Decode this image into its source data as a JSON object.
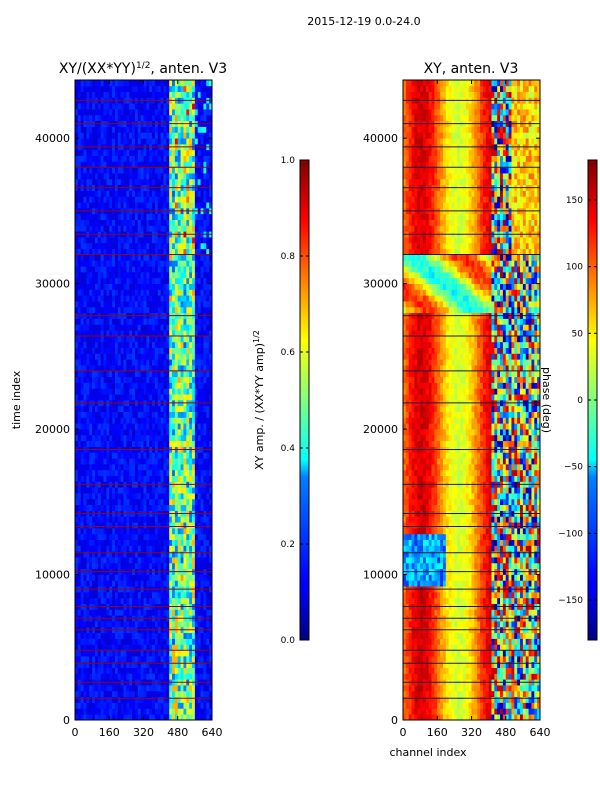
{
  "figure": {
    "suptitle": "2015-12-19 0.0-24.0"
  },
  "chart_data": [
    {
      "type": "heatmap",
      "title": "XY/(XX*YY)^1/2, anten. V3",
      "title_main": "XY/(XX*YY)",
      "title_sup": "1/2",
      "title_tail": ", anten. V3",
      "xlabel": "",
      "ylabel": "time index",
      "xlim": [
        0,
        640
      ],
      "ylim": [
        0,
        44000
      ],
      "xticks": [
        0,
        160,
        320,
        480,
        640
      ],
      "yticks": [
        0,
        10000,
        20000,
        30000,
        40000
      ],
      "colormap": "jet",
      "colorbar": {
        "label_main": "XY amp. / (XX*YY amp)",
        "label_sup": "1/2",
        "range": [
          0.0,
          1.0
        ],
        "ticks": [
          0.0,
          0.2,
          0.4,
          0.6,
          0.8,
          1.0
        ],
        "tick_labels": [
          "0.0",
          "0.2",
          "0.4",
          "0.6",
          "0.8",
          "1.0"
        ]
      }
    },
    {
      "type": "heatmap",
      "title": "XY, anten. V3",
      "xlabel": "channel index",
      "ylabel": "",
      "xlim": [
        0,
        640
      ],
      "ylim": [
        0,
        44000
      ],
      "xticks": [
        0,
        160,
        320,
        480,
        640
      ],
      "yticks": [
        0,
        10000,
        20000,
        30000,
        40000
      ],
      "colormap": "jet",
      "colorbar": {
        "label": "phase (deg)",
        "range": [
          -180,
          180
        ],
        "ticks": [
          -150,
          -100,
          -50,
          0,
          50,
          100,
          150
        ],
        "tick_labels": [
          "−150",
          "−100",
          "−50",
          "0",
          "50",
          "100",
          "150"
        ]
      }
    }
  ]
}
